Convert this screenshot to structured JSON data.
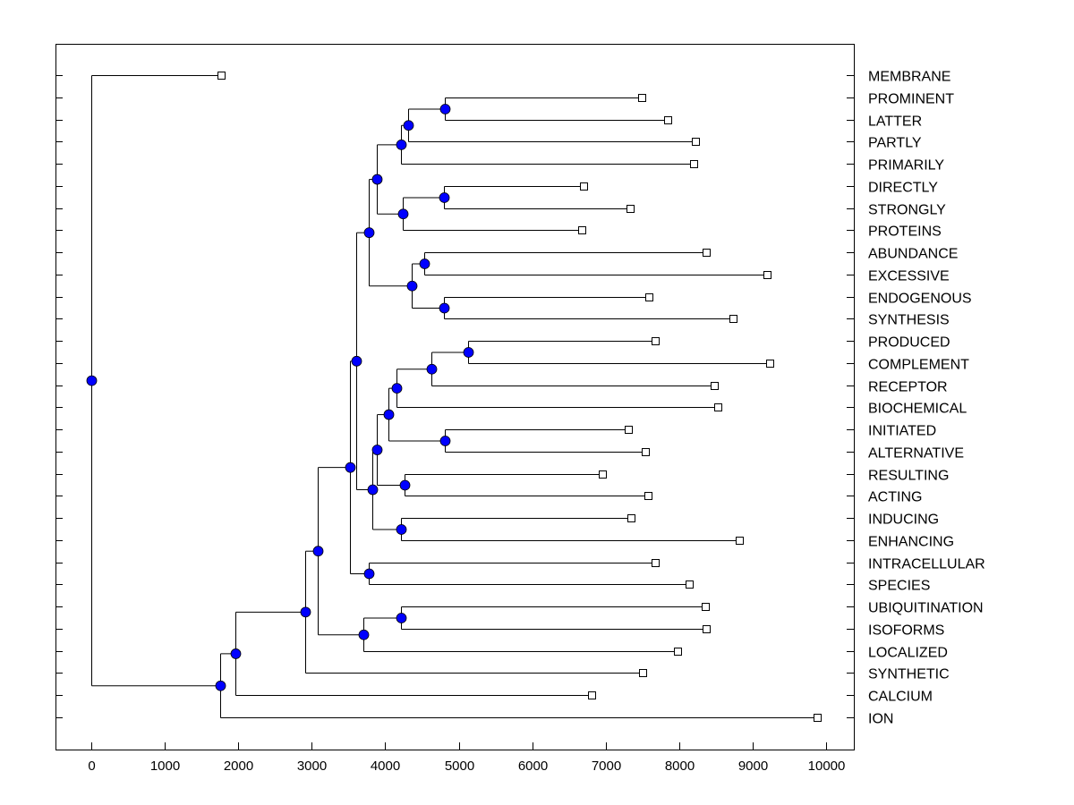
{
  "chart_data": {
    "type": "dendrogram",
    "title": "",
    "xlabel": "",
    "ylabel": "",
    "xlim": [
      -500,
      10400
    ],
    "xticks": [
      0,
      1000,
      2000,
      3000,
      4000,
      5000,
      6000,
      7000,
      8000,
      9000,
      10000
    ],
    "xtick_labels": [
      "0",
      "1000",
      "2000",
      "3000",
      "4000",
      "5000",
      "6000",
      "7000",
      "8000",
      "9000",
      "10000"
    ],
    "node_color": "#0000ff",
    "leaf_order": [
      "MEMBRANE",
      "PROMINENT",
      "LATTER",
      "PARTLY",
      "PRIMARILY",
      "DIRECTLY",
      "STRONGLY",
      "PROTEINS",
      "ABUNDANCE",
      "EXCESSIVE",
      "ENDOGENOUS",
      "SYNTHESIS",
      "PRODUCED",
      "COMPLEMENT",
      "RECEPTOR",
      "BIOCHEMICAL",
      "INITIATED",
      "ALTERNATIVE",
      "RESULTING",
      "ACTING",
      "INDUCING",
      "ENHANCING",
      "INTRACELLULAR",
      "SPECIES",
      "UBIQUITINATION",
      "ISOFORMS",
      "LOCALIZED",
      "SYNTHETIC",
      "CALCIUM",
      "ION"
    ],
    "tree": {
      "h": 0,
      "children": [
        {
          "label": "MEMBRANE",
          "h": 1766
        },
        {
          "h": 1754,
          "children": [
            {
              "h": 1961,
              "children": [
                {
                  "h": 2911,
                  "children": [
                    {
                      "h": 3082,
                      "children": [
                        {
                          "h": 3520,
                          "children": [
                            {
                              "h": 3605,
                              "children": [
                                {
                                  "h": 3776,
                                  "children": [
                                    {
                                      "h": 3886,
                                      "children": [
                                        {
                                          "h": 4214,
                                          "children": [
                                            {
                                              "h": 4312,
                                              "children": [
                                                {
                                                  "h": 4811,
                                                  "children": [
                                                    {
                                                      "label": "PROMINENT",
                                                      "h": 7491
                                                    },
                                                    {
                                                      "label": "LATTER",
                                                      "h": 7844
                                                    }
                                                  ]
                                                },
                                                {
                                                  "label": "PARTLY",
                                                  "h": 8222
                                                }
                                              ]
                                            },
                                            {
                                              "label": "PRIMARILY",
                                              "h": 8197
                                            }
                                          ]
                                        },
                                        {
                                          "h": 4239,
                                          "children": [
                                            {
                                              "h": 4799,
                                              "children": [
                                                {
                                                  "label": "DIRECTLY",
                                                  "h": 6699
                                                },
                                                {
                                                  "label": "STRONGLY",
                                                  "h": 7333
                                                }
                                              ]
                                            },
                                            {
                                              "label": "PROTEINS",
                                              "h": 6675
                                            }
                                          ]
                                        }
                                      ]
                                    },
                                    {
                                      "h": 4361,
                                      "children": [
                                        {
                                          "h": 4531,
                                          "children": [
                                            {
                                              "label": "ABUNDANCE",
                                              "h": 8368
                                            },
                                            {
                                              "label": "EXCESSIVE",
                                              "h": 9196
                                            }
                                          ]
                                        },
                                        {
                                          "h": 4799,
                                          "children": [
                                            {
                                              "label": "ENDOGENOUS",
                                              "h": 7588
                                            },
                                            {
                                              "label": "SYNTHESIS",
                                              "h": 8733
                                            }
                                          ]
                                        }
                                      ]
                                    }
                                  ]
                                },
                                {
                                  "h": 3825,
                                  "children": [
                                    {
                                      "h": 3886,
                                      "children": [
                                        {
                                          "h": 4044,
                                          "children": [
                                            {
                                              "h": 4153,
                                              "children": [
                                                {
                                                  "h": 4628,
                                                  "children": [
                                                    {
                                                      "h": 5128,
                                                      "children": [
                                                        {
                                                          "label": "PRODUCED",
                                                          "h": 7674
                                                        },
                                                        {
                                                          "label": "COMPLEMENT",
                                                          "h": 9233
                                                        }
                                                      ]
                                                    },
                                                    {
                                                      "label": "RECEPTOR",
                                                      "h": 8477
                                                    }
                                                  ]
                                                },
                                                {
                                                  "label": "BIOCHEMICAL",
                                                  "h": 8526
                                                }
                                              ]
                                            },
                                            {
                                              "h": 4811,
                                              "children": [
                                                {
                                                  "label": "INITIATED",
                                                  "h": 7308
                                                },
                                                {
                                                  "label": "ALTERNATIVE",
                                                  "h": 7540
                                                }
                                              ]
                                            }
                                          ]
                                        },
                                        {
                                          "h": 4263,
                                          "children": [
                                            {
                                              "label": "RESULTING",
                                              "h": 6955
                                            },
                                            {
                                              "label": "ACTING",
                                              "h": 7576
                                            }
                                          ]
                                        }
                                      ]
                                    },
                                    {
                                      "h": 4214,
                                      "children": [
                                        {
                                          "label": "INDUCING",
                                          "h": 7345
                                        },
                                        {
                                          "label": "ENHANCING",
                                          "h": 8818
                                        }
                                      ]
                                    }
                                  ]
                                }
                              ]
                            },
                            {
                              "h": 3776,
                              "children": [
                                {
                                  "label": "INTRACELLULAR",
                                  "h": 7674
                                },
                                {
                                  "label": "SPECIES",
                                  "h": 8136
                                }
                              ]
                            }
                          ]
                        },
                        {
                          "h": 3703,
                          "children": [
                            {
                              "h": 4214,
                              "children": [
                                {
                                  "label": "UBIQUITINATION",
                                  "h": 8356
                                },
                                {
                                  "label": "ISOFORMS",
                                  "h": 8368
                                }
                              ]
                            },
                            {
                              "label": "LOCALIZED",
                              "h": 7978
                            }
                          ]
                        }
                      ]
                    },
                    {
                      "label": "SYNTHETIC",
                      "h": 7503
                    }
                  ]
                },
                {
                  "label": "CALCIUM",
                  "h": 6809
                }
              ]
            },
            {
              "label": "ION",
              "h": 9878
            }
          ]
        }
      ]
    }
  }
}
